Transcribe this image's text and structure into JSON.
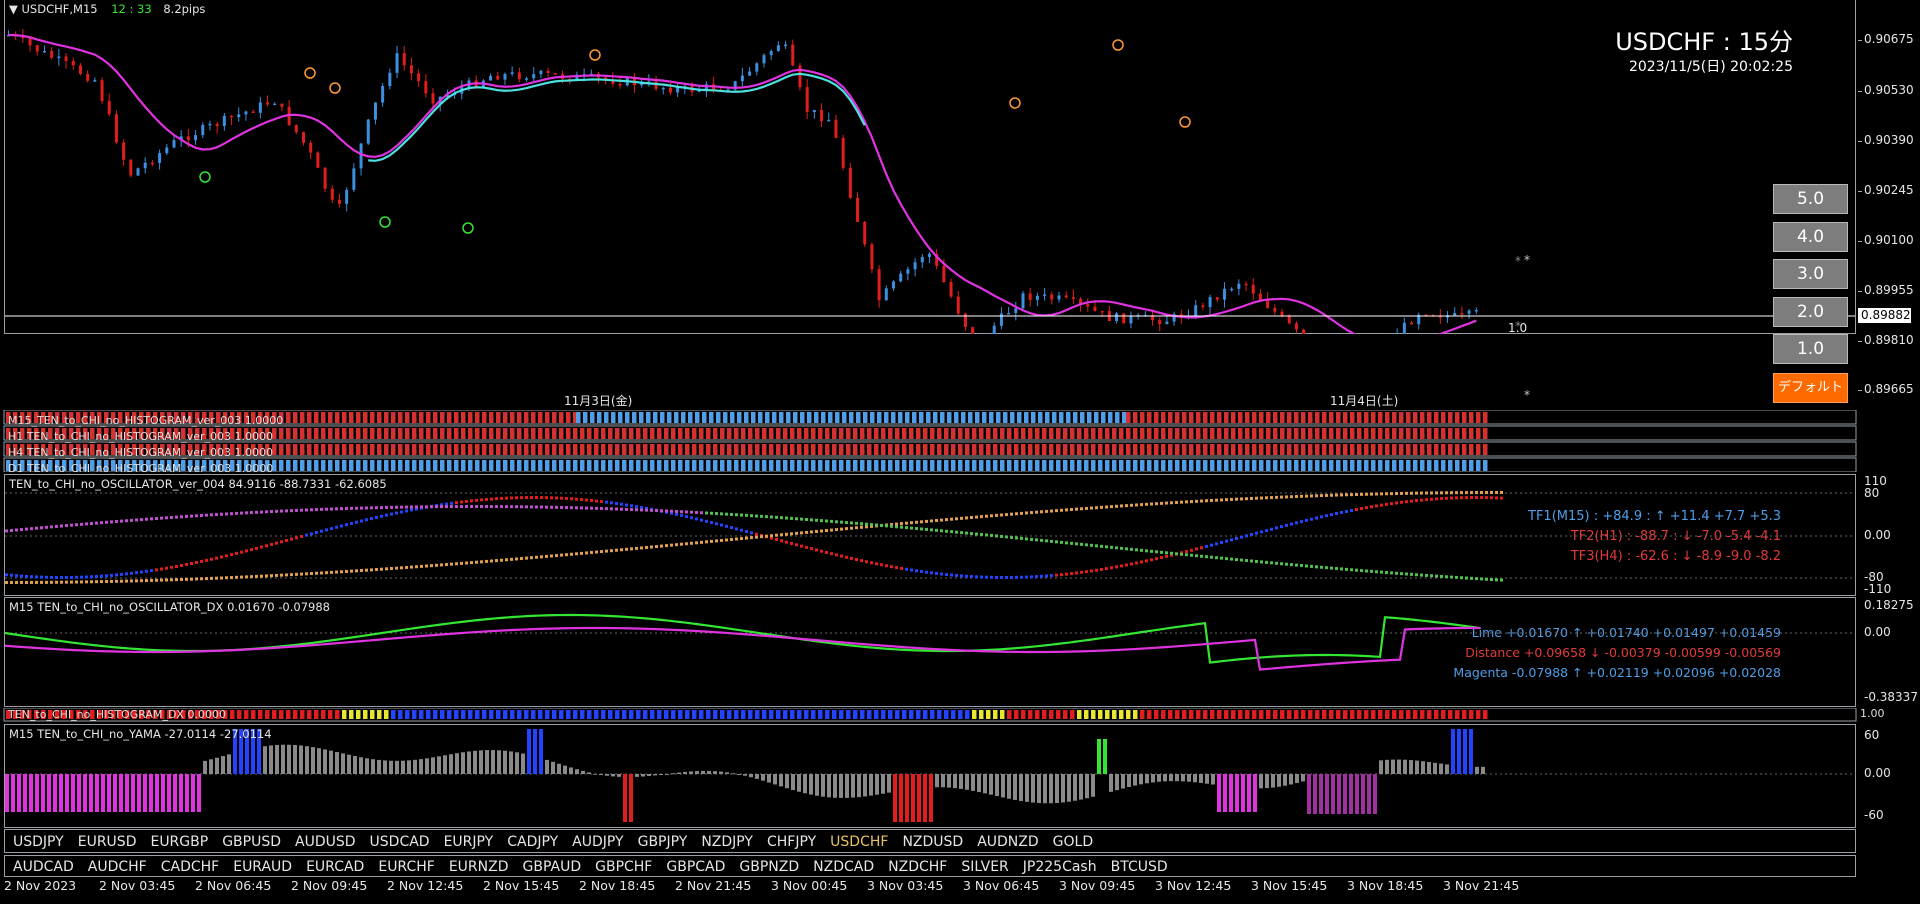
{
  "window": {
    "symbol_tf": "USDCHF,M15",
    "countdown": "12 : 33",
    "spread": "8.2pips",
    "title": "USDCHF : 15分",
    "datetime": "2023/11/5(日) 20:02:25"
  },
  "colors": {
    "bull": "#3d8fe0",
    "bear": "#e21d1d",
    "ma": "#e033e0",
    "ma2": "#4de0e0",
    "hist_red": "#d63131",
    "hist_blue": "#4f9ee8",
    "lime": "#33e633",
    "magenta": "#e033e0",
    "accent": "#ff6a00"
  },
  "main_chart": {
    "price_axis": [
      "0.90675",
      "0.90530",
      "0.90390",
      "0.90245",
      "0.90100",
      "0.89955",
      "0.89810",
      "0.89665"
    ],
    "current_price": "0.89882",
    "ratio_label": "1.0",
    "date_labels": [
      "11月3日(金)",
      "11月4日(土)"
    ]
  },
  "buttons": [
    "5.0",
    "4.0",
    "3.0",
    "2.0",
    "1.0",
    "デフォルト"
  ],
  "histogram_panes": [
    {
      "label": "M15_TEN_to_CHI_no_HISTOGRAM_ver_003 1.0000"
    },
    {
      "label": "H1 TEN_to_CHI_no_HISTOGRAM_ver_003 1.0000"
    },
    {
      "label": "H4 TEN_to_CHI_no_HISTOGRAM_ver_003 1.0000"
    },
    {
      "label": "D1 TEN_to_CHI_no_HISTOGRAM_ver_003 1.0000"
    }
  ],
  "oscillator": {
    "label": "TEN_to_CHI_no_OSCILLATOR_ver_004 84.9116 -88.7331 -62.6085",
    "axis": [
      "110",
      "80",
      "0.00",
      "-80",
      "-110"
    ],
    "tf1": "TF1(M15) : +84.9 : ↑ +11.4 +7.7 +5.3",
    "tf2": "TF2(H1) : -88.7 : ↓ -7.0 -5.4 -4.1",
    "tf3": "TF3(H4) : -62.6 : ↓ -8.9 -9.0 -8.2"
  },
  "dx": {
    "label": "M15 TEN_to_CHI_no_OSCILLATOR_DX 0.01670 -0.07988",
    "axis": [
      "0.18275",
      "0.00",
      "-0.38337"
    ],
    "lime": "Lime +0.01670 ↑ +0.01740 +0.01497 +0.01459",
    "distance": "Distance +0.09658 ↓ -0.00379 -0.00599 -0.00569",
    "magenta": "Magenta -0.07988 ↑ +0.02119 +0.02096 +0.02028"
  },
  "hist_dx": {
    "label": "TEN_to_CHI_no_HISTOGRAM_DX 0.0000",
    "axis": "1.00"
  },
  "yama": {
    "label": "M15 TEN_to_CHI_no_YAMA -27.0114 -27.0114",
    "axis": [
      "60",
      "0.00",
      "-60"
    ]
  },
  "symbols_row1": [
    "USDJPY",
    "EURUSD",
    "EURGBP",
    "GBPUSD",
    "AUDUSD",
    "USDCAD",
    "EURJPY",
    "CADJPY",
    "AUDJPY",
    "GBPJPY",
    "NZDJPY",
    "CHFJPY",
    "USDCHF",
    "NZDUSD",
    "AUDNZD",
    "GOLD"
  ],
  "symbols_row2": [
    "AUDCAD",
    "AUDCHF",
    "CADCHF",
    "EURAUD",
    "EURCAD",
    "EURCHF",
    "EURNZD",
    "GBPAUD",
    "GBPCHF",
    "GBPCAD",
    "GBPNZD",
    "NZDCAD",
    "NZDCHF",
    "SILVER",
    "JP225Cash",
    "BTCUSD"
  ],
  "active_symbol": "USDCHF",
  "time_axis": [
    "2 Nov 2023",
    "2 Nov 03:45",
    "2 Nov 06:45",
    "2 Nov 09:45",
    "2 Nov 12:45",
    "2 Nov 15:45",
    "2 Nov 18:45",
    "2 Nov 21:45",
    "3 Nov 00:45",
    "3 Nov 03:45",
    "3 Nov 06:45",
    "3 Nov 09:45",
    "3 Nov 12:45",
    "3 Nov 15:45",
    "3 Nov 18:45",
    "3 Nov 21:45"
  ]
}
